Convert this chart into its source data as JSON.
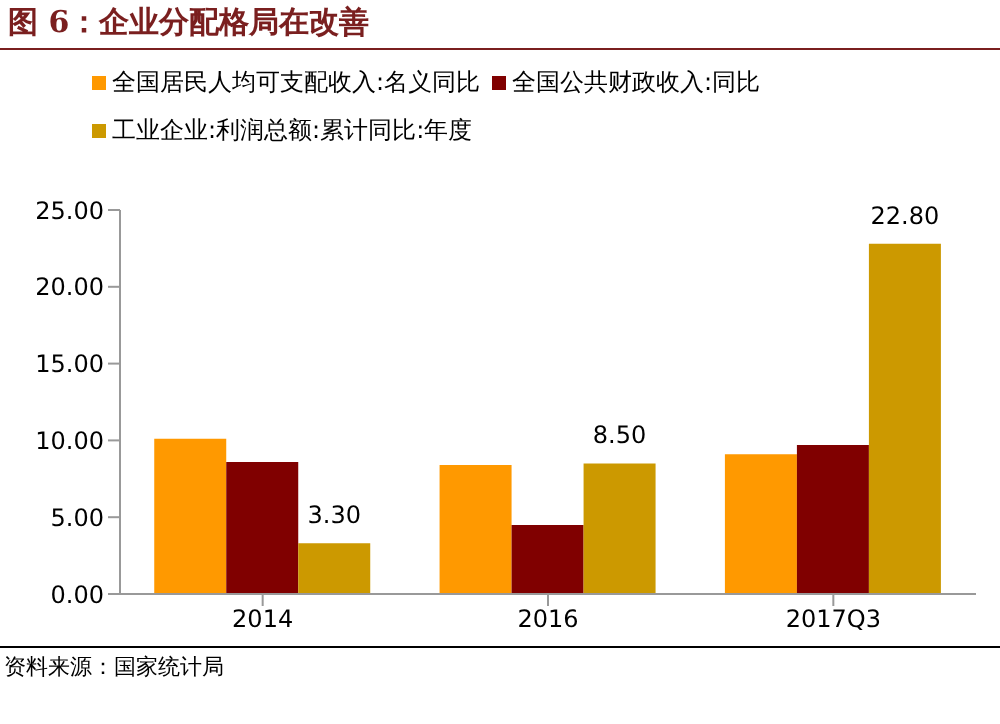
{
  "chart_data": {
    "type": "bar",
    "title": "图 6：企业分配格局在改善",
    "categories": [
      "2014",
      "2016",
      "2017Q3"
    ],
    "series": [
      {
        "name": "全国居民人均可支配收入:名义同比",
        "color": "#ff9900",
        "values": [
          10.1,
          8.4,
          9.1
        ]
      },
      {
        "name": "全国公共财政收入:同比",
        "color": "#800000",
        "values": [
          8.6,
          4.5,
          9.7
        ]
      },
      {
        "name": "工业企业:利润总额:累计同比:年度",
        "color": "#cc9900",
        "values": [
          3.3,
          8.5,
          22.8
        ],
        "value_labels": [
          "3.30",
          "8.50",
          "22.80"
        ]
      }
    ],
    "ylim": [
      0,
      25
    ],
    "yticks": [
      {
        "value": 0,
        "label": "0.00"
      },
      {
        "value": 5,
        "label": "5.00"
      },
      {
        "value": 10,
        "label": "10.00"
      },
      {
        "value": 15,
        "label": "15.00"
      },
      {
        "value": 20,
        "label": "20.00"
      },
      {
        "value": 25,
        "label": "25.00"
      }
    ],
    "grid": false,
    "legend": "top",
    "annotations": [
      "资料来源：国家统计局"
    ]
  }
}
